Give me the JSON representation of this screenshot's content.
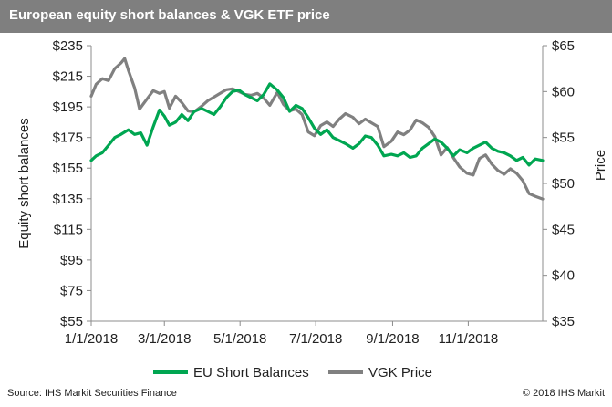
{
  "header": {
    "title": "European equity short balances & VGK ETF price"
  },
  "footer": {
    "source": "Source: IHS Markit Securities Finance",
    "copyright": "© 2018 IHS Markit"
  },
  "colors": {
    "header_bg": "#7f7f7f",
    "eu_line": "#00a651",
    "vgk_line": "#808080"
  },
  "chart_data": {
    "type": "line",
    "x_ticks": [
      "1/1/2018",
      "3/1/2018",
      "5/1/2018",
      "7/1/2018",
      "9/1/2018",
      "11/1/2018"
    ],
    "x_range": [
      "2018-01-01",
      "2018-12-31"
    ],
    "ylabel": "Equity short balances",
    "y2label": "Price",
    "ylim": [
      55,
      235
    ],
    "y2lim": [
      35,
      65
    ],
    "y_ticks": [
      "$55",
      "$75",
      "$95",
      "$115",
      "$135",
      "$155",
      "$175",
      "$195",
      "$215",
      "$235"
    ],
    "y2_ticks": [
      "$35",
      "$40",
      "$45",
      "$50",
      "$55",
      "$60",
      "$65"
    ],
    "grid": false,
    "legend": "bottom",
    "series": [
      {
        "name": "EU Short Balances",
        "axis": "left",
        "color": "#00a651",
        "points": [
          [
            "2018-01-01",
            160
          ],
          [
            "2018-01-05",
            163
          ],
          [
            "2018-01-10",
            165
          ],
          [
            "2018-01-15",
            170
          ],
          [
            "2018-01-20",
            175
          ],
          [
            "2018-01-25",
            177
          ],
          [
            "2018-01-31",
            180
          ],
          [
            "2018-02-05",
            177
          ],
          [
            "2018-02-10",
            178
          ],
          [
            "2018-02-15",
            170
          ],
          [
            "2018-02-20",
            182
          ],
          [
            "2018-02-25",
            193
          ],
          [
            "2018-03-01",
            189
          ],
          [
            "2018-03-05",
            183
          ],
          [
            "2018-03-10",
            185
          ],
          [
            "2018-03-15",
            190
          ],
          [
            "2018-03-20",
            186
          ],
          [
            "2018-03-25",
            192
          ],
          [
            "2018-03-31",
            194
          ],
          [
            "2018-04-05",
            192
          ],
          [
            "2018-04-10",
            190
          ],
          [
            "2018-04-15",
            195
          ],
          [
            "2018-04-20",
            201
          ],
          [
            "2018-04-25",
            205
          ],
          [
            "2018-04-30",
            206
          ],
          [
            "2018-05-05",
            203
          ],
          [
            "2018-05-10",
            201
          ],
          [
            "2018-05-15",
            199
          ],
          [
            "2018-05-20",
            203
          ],
          [
            "2018-05-25",
            210
          ],
          [
            "2018-05-31",
            206
          ],
          [
            "2018-06-05",
            201
          ],
          [
            "2018-06-10",
            192
          ],
          [
            "2018-06-15",
            196
          ],
          [
            "2018-06-20",
            194
          ],
          [
            "2018-06-25",
            188
          ],
          [
            "2018-06-30",
            181
          ],
          [
            "2018-07-05",
            177
          ],
          [
            "2018-07-10",
            180
          ],
          [
            "2018-07-15",
            175
          ],
          [
            "2018-07-20",
            173
          ],
          [
            "2018-07-25",
            171
          ],
          [
            "2018-07-31",
            168
          ],
          [
            "2018-08-05",
            171
          ],
          [
            "2018-08-10",
            176
          ],
          [
            "2018-08-15",
            175
          ],
          [
            "2018-08-20",
            170
          ],
          [
            "2018-08-25",
            163
          ],
          [
            "2018-08-31",
            164
          ],
          [
            "2018-09-05",
            163
          ],
          [
            "2018-09-10",
            165
          ],
          [
            "2018-09-15",
            162
          ],
          [
            "2018-09-20",
            163
          ],
          [
            "2018-09-25",
            168
          ],
          [
            "2018-09-30",
            171
          ],
          [
            "2018-10-05",
            174
          ],
          [
            "2018-10-10",
            172
          ],
          [
            "2018-10-15",
            168
          ],
          [
            "2018-10-20",
            163
          ],
          [
            "2018-10-25",
            167
          ],
          [
            "2018-10-31",
            165
          ],
          [
            "2018-11-05",
            168
          ],
          [
            "2018-11-10",
            170
          ],
          [
            "2018-11-15",
            172
          ],
          [
            "2018-11-20",
            168
          ],
          [
            "2018-11-25",
            166
          ],
          [
            "2018-11-30",
            165
          ],
          [
            "2018-12-05",
            163
          ],
          [
            "2018-12-10",
            160
          ],
          [
            "2018-12-15",
            162
          ],
          [
            "2018-12-20",
            157
          ],
          [
            "2018-12-25",
            161
          ],
          [
            "2018-12-31",
            160
          ]
        ]
      },
      {
        "name": "VGK Price",
        "axis": "right",
        "color": "#808080",
        "points": [
          [
            "2018-01-01",
            59.5
          ],
          [
            "2018-01-05",
            60.8
          ],
          [
            "2018-01-10",
            61.4
          ],
          [
            "2018-01-15",
            61.2
          ],
          [
            "2018-01-20",
            62.5
          ],
          [
            "2018-01-25",
            63.1
          ],
          [
            "2018-01-28",
            63.6
          ],
          [
            "2018-01-31",
            62.3
          ],
          [
            "2018-02-05",
            60.4
          ],
          [
            "2018-02-09",
            58.1
          ],
          [
            "2018-02-15",
            59.2
          ],
          [
            "2018-02-20",
            60.1
          ],
          [
            "2018-02-25",
            59.8
          ],
          [
            "2018-03-01",
            60.0
          ],
          [
            "2018-03-05",
            58.2
          ],
          [
            "2018-03-10",
            59.5
          ],
          [
            "2018-03-15",
            58.8
          ],
          [
            "2018-03-20",
            57.9
          ],
          [
            "2018-03-25",
            57.8
          ],
          [
            "2018-03-31",
            58.4
          ],
          [
            "2018-04-05",
            59.0
          ],
          [
            "2018-04-10",
            59.4
          ],
          [
            "2018-04-15",
            59.8
          ],
          [
            "2018-04-20",
            60.2
          ],
          [
            "2018-04-25",
            60.3
          ],
          [
            "2018-04-30",
            60.0
          ],
          [
            "2018-05-05",
            59.7
          ],
          [
            "2018-05-10",
            59.6
          ],
          [
            "2018-05-15",
            59.8
          ],
          [
            "2018-05-20",
            59.3
          ],
          [
            "2018-05-25",
            58.5
          ],
          [
            "2018-05-31",
            59.9
          ],
          [
            "2018-06-05",
            58.6
          ],
          [
            "2018-06-10",
            57.9
          ],
          [
            "2018-06-15",
            58.1
          ],
          [
            "2018-06-20",
            57.5
          ],
          [
            "2018-06-25",
            55.6
          ],
          [
            "2018-06-30",
            55.2
          ],
          [
            "2018-07-05",
            56.3
          ],
          [
            "2018-07-10",
            56.7
          ],
          [
            "2018-07-15",
            56.2
          ],
          [
            "2018-07-20",
            57.0
          ],
          [
            "2018-07-25",
            57.6
          ],
          [
            "2018-07-31",
            57.2
          ],
          [
            "2018-08-05",
            56.5
          ],
          [
            "2018-08-10",
            57.0
          ],
          [
            "2018-08-15",
            56.6
          ],
          [
            "2018-08-20",
            56.2
          ],
          [
            "2018-08-25",
            54.0
          ],
          [
            "2018-08-31",
            54.6
          ],
          [
            "2018-09-05",
            55.6
          ],
          [
            "2018-09-10",
            55.3
          ],
          [
            "2018-09-15",
            55.8
          ],
          [
            "2018-09-20",
            56.9
          ],
          [
            "2018-09-25",
            56.6
          ],
          [
            "2018-09-30",
            56.1
          ],
          [
            "2018-10-05",
            55.1
          ],
          [
            "2018-10-10",
            53.1
          ],
          [
            "2018-10-15",
            53.9
          ],
          [
            "2018-10-20",
            52.8
          ],
          [
            "2018-10-25",
            51.8
          ],
          [
            "2018-10-31",
            51.1
          ],
          [
            "2018-11-05",
            50.9
          ],
          [
            "2018-11-10",
            52.7
          ],
          [
            "2018-11-15",
            53.1
          ],
          [
            "2018-11-20",
            52.1
          ],
          [
            "2018-11-25",
            51.4
          ],
          [
            "2018-11-30",
            51.0
          ],
          [
            "2018-12-05",
            51.6
          ],
          [
            "2018-12-10",
            51.1
          ],
          [
            "2018-12-15",
            50.3
          ],
          [
            "2018-12-20",
            48.9
          ],
          [
            "2018-12-25",
            48.6
          ],
          [
            "2018-12-31",
            48.3
          ]
        ]
      }
    ]
  }
}
